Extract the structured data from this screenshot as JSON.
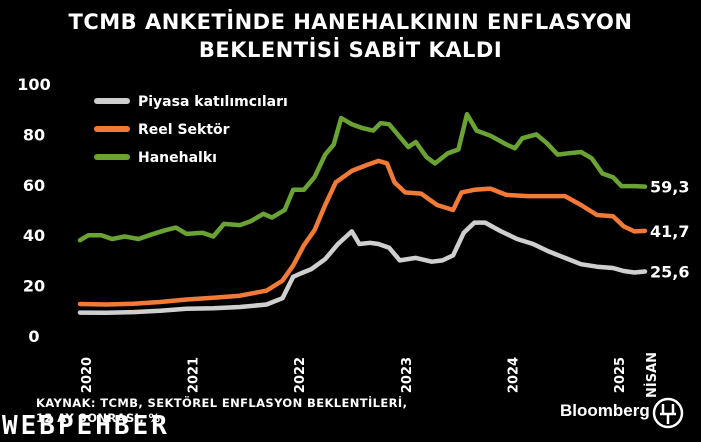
{
  "chart_data": {
    "type": "line",
    "title": "TCMB ANKETİNDE HANEHALKININ ENFLASYON",
    "subtitle": "BEKLENTİSİ SABİT KALDI",
    "xlabel": "",
    "ylabel": "",
    "ylim": [
      0,
      100
    ],
    "xlim": [
      2020.0,
      2025.3
    ],
    "yticks": [
      "0",
      "20",
      "40",
      "60",
      "80",
      "100"
    ],
    "xticks": [
      "2020",
      "2021",
      "2022",
      "2023",
      "2024",
      "2025",
      "NİSAN"
    ],
    "grid": false,
    "legend_position": "top-left",
    "series": [
      {
        "name": "Piyasa katılımcıları",
        "color": "#cfcfcf",
        "end_label": "25,6",
        "points": [
          [
            2020.0,
            9.3
          ],
          [
            2020.25,
            9.2
          ],
          [
            2020.5,
            9.5
          ],
          [
            2020.75,
            10.0
          ],
          [
            2021.0,
            10.8
          ],
          [
            2021.25,
            11.0
          ],
          [
            2021.5,
            11.5
          ],
          [
            2021.75,
            12.5
          ],
          [
            2021.9,
            15.0
          ],
          [
            2022.0,
            23.5
          ],
          [
            2022.08,
            25.0
          ],
          [
            2022.17,
            26.5
          ],
          [
            2022.3,
            30.5
          ],
          [
            2022.42,
            36.5
          ],
          [
            2022.55,
            41.5
          ],
          [
            2022.62,
            36.5
          ],
          [
            2022.72,
            37.0
          ],
          [
            2022.8,
            36.5
          ],
          [
            2022.9,
            35.0
          ],
          [
            2023.0,
            30.0
          ],
          [
            2023.15,
            31.0
          ],
          [
            2023.3,
            29.5
          ],
          [
            2023.4,
            30.0
          ],
          [
            2023.5,
            32.0
          ],
          [
            2023.6,
            41.0
          ],
          [
            2023.7,
            45.0
          ],
          [
            2023.8,
            45.0
          ],
          [
            2023.95,
            41.5
          ],
          [
            2024.1,
            38.5
          ],
          [
            2024.25,
            36.5
          ],
          [
            2024.4,
            33.5
          ],
          [
            2024.55,
            31.0
          ],
          [
            2024.7,
            28.5
          ],
          [
            2024.85,
            27.5
          ],
          [
            2025.0,
            27.0
          ],
          [
            2025.1,
            25.8
          ],
          [
            2025.2,
            25.2
          ],
          [
            2025.3,
            25.6
          ]
        ]
      },
      {
        "name": "Reel Sektör",
        "color": "#f07a36",
        "end_label": "41,7",
        "points": [
          [
            2020.0,
            12.7
          ],
          [
            2020.25,
            12.5
          ],
          [
            2020.5,
            12.8
          ],
          [
            2020.75,
            13.5
          ],
          [
            2021.0,
            14.5
          ],
          [
            2021.25,
            15.2
          ],
          [
            2021.5,
            16.0
          ],
          [
            2021.75,
            18.0
          ],
          [
            2021.9,
            22.0
          ],
          [
            2022.0,
            28.0
          ],
          [
            2022.1,
            36.0
          ],
          [
            2022.2,
            42.0
          ],
          [
            2022.3,
            52.0
          ],
          [
            2022.4,
            61.0
          ],
          [
            2022.55,
            65.5
          ],
          [
            2022.7,
            68.0
          ],
          [
            2022.8,
            69.5
          ],
          [
            2022.88,
            68.5
          ],
          [
            2022.95,
            61.0
          ],
          [
            2023.05,
            57.0
          ],
          [
            2023.2,
            56.5
          ],
          [
            2023.35,
            52.0
          ],
          [
            2023.5,
            50.0
          ],
          [
            2023.58,
            57.0
          ],
          [
            2023.7,
            58.0
          ],
          [
            2023.85,
            58.5
          ],
          [
            2024.0,
            56.0
          ],
          [
            2024.2,
            55.5
          ],
          [
            2024.4,
            55.5
          ],
          [
            2024.55,
            55.5
          ],
          [
            2024.7,
            52.0
          ],
          [
            2024.85,
            48.0
          ],
          [
            2025.0,
            47.5
          ],
          [
            2025.1,
            43.5
          ],
          [
            2025.2,
            41.5
          ],
          [
            2025.3,
            41.7
          ]
        ]
      },
      {
        "name": "Hanehalkı",
        "color": "#6aa333",
        "end_label": "59,3",
        "points": [
          [
            2020.0,
            38.0
          ],
          [
            2020.08,
            40.0
          ],
          [
            2020.2,
            40.0
          ],
          [
            2020.3,
            38.5
          ],
          [
            2020.42,
            39.5
          ],
          [
            2020.55,
            38.5
          ],
          [
            2020.65,
            40.0
          ],
          [
            2020.8,
            42.0
          ],
          [
            2020.9,
            43.0
          ],
          [
            2021.0,
            40.5
          ],
          [
            2021.15,
            41.0
          ],
          [
            2021.25,
            39.5
          ],
          [
            2021.35,
            44.5
          ],
          [
            2021.5,
            44.0
          ],
          [
            2021.6,
            45.5
          ],
          [
            2021.72,
            48.5
          ],
          [
            2021.8,
            47.0
          ],
          [
            2021.92,
            50.0
          ],
          [
            2022.0,
            58.0
          ],
          [
            2022.1,
            58.0
          ],
          [
            2022.2,
            63.0
          ],
          [
            2022.3,
            72.0
          ],
          [
            2022.38,
            76.0
          ],
          [
            2022.45,
            86.5
          ],
          [
            2022.55,
            84.0
          ],
          [
            2022.65,
            82.5
          ],
          [
            2022.75,
            81.5
          ],
          [
            2022.82,
            84.5
          ],
          [
            2022.9,
            84.0
          ],
          [
            2023.0,
            79.0
          ],
          [
            2023.08,
            75.0
          ],
          [
            2023.15,
            77.0
          ],
          [
            2023.25,
            71.0
          ],
          [
            2023.33,
            68.5
          ],
          [
            2023.45,
            72.5
          ],
          [
            2023.55,
            74.0
          ],
          [
            2023.63,
            88.0
          ],
          [
            2023.72,
            81.5
          ],
          [
            2023.85,
            79.5
          ],
          [
            2024.0,
            76.0
          ],
          [
            2024.08,
            74.5
          ],
          [
            2024.15,
            78.5
          ],
          [
            2024.28,
            80.0
          ],
          [
            2024.38,
            76.5
          ],
          [
            2024.48,
            72.0
          ],
          [
            2024.58,
            72.5
          ],
          [
            2024.7,
            73.0
          ],
          [
            2024.8,
            70.5
          ],
          [
            2024.9,
            64.5
          ],
          [
            2025.0,
            63.0
          ],
          [
            2025.08,
            59.5
          ],
          [
            2025.2,
            59.5
          ],
          [
            2025.3,
            59.3
          ]
        ]
      }
    ]
  },
  "source": {
    "line1": "KAYNAK: TCMB, SEKTÖREL ENFLASYON BEKLENTİLERİ,",
    "line2": "12 AY SONRASI, %"
  },
  "brand": {
    "name": "Bloomberg",
    "logo_icon": "ht-logo-icon",
    "watermark": "WEBPEHBER"
  }
}
